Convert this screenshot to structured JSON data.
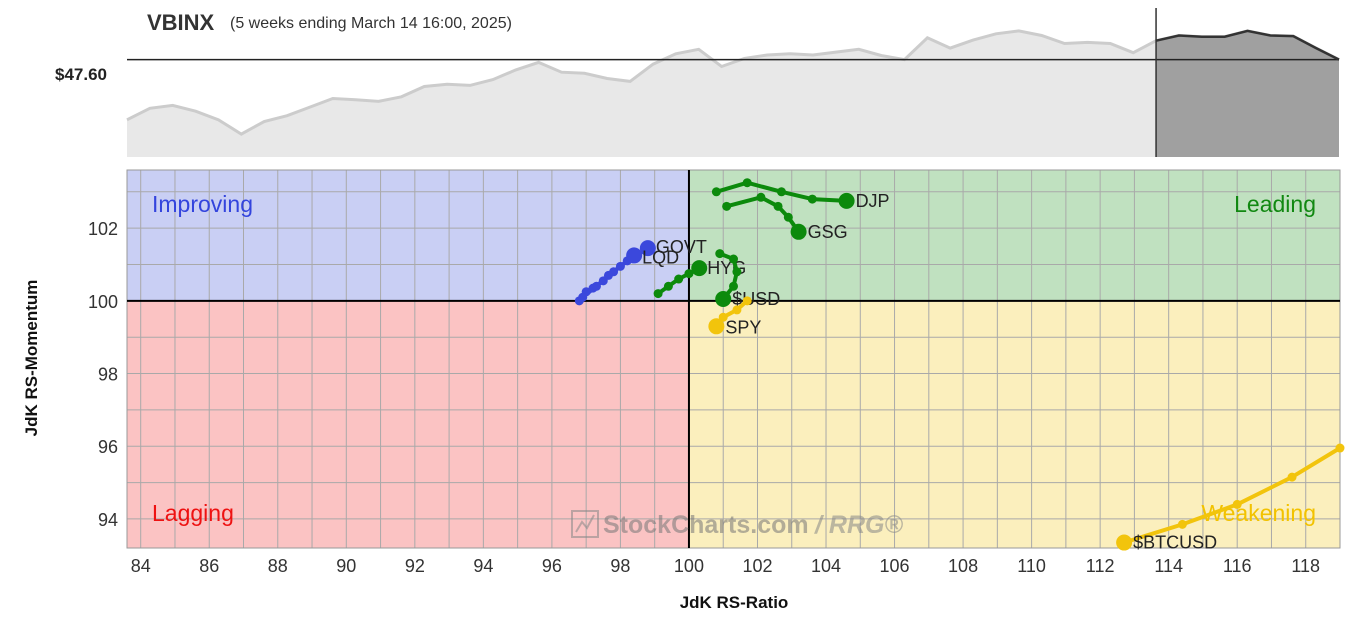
{
  "header": {
    "symbol": "VBINX",
    "subtitle": "(5 weeks ending March 14 16:00, 2025)",
    "price_label": "$47.60"
  },
  "watermark": "StockCharts.com",
  "watermark_rrg": "/ RRG®",
  "colors": {
    "improving": "#c9cff4",
    "leading": "#c0e1c0",
    "weakening": "#fbefbd",
    "lagging": "#fbc3c3",
    "improving_text": "#3344dd",
    "leading_text": "#118811",
    "weakening_text": "#f2c200",
    "lagging_text": "#ee1111",
    "blue_tail": "#3b48dc",
    "green_tail": "#0c8a0c",
    "yellow_tail": "#f2c40c",
    "price_fill": "#e8e8e8",
    "price_line": "#cccccc",
    "price_recent_fill": "#a0a0a0"
  },
  "price_chart": {
    "type": "area",
    "reference_value": 47.6,
    "recent_window_start_index": 45,
    "values": [
      46.55,
      46.75,
      46.8,
      46.7,
      46.55,
      46.3,
      46.52,
      46.62,
      46.77,
      46.92,
      46.9,
      46.87,
      46.95,
      47.13,
      47.17,
      47.15,
      47.25,
      47.42,
      47.55,
      47.38,
      47.36,
      47.27,
      47.22,
      47.52,
      47.7,
      47.78,
      47.48,
      47.62,
      47.68,
      47.7,
      47.68,
      47.73,
      47.78,
      47.67,
      47.6,
      47.98,
      47.8,
      47.94,
      48.05,
      48.1,
      48.02,
      47.88,
      47.9,
      47.88,
      47.72,
      47.93,
      48.02,
      48.0,
      48.0,
      48.1,
      48.02,
      48.01,
      47.8,
      47.6
    ]
  },
  "chart_data": {
    "type": "scatter",
    "title": "VBINX",
    "subtitle": "(5 weeks ending March 14 16:00, 2025)",
    "xlabel": "JdK RS-Ratio",
    "ylabel": "JdK RS-Momentum",
    "xlim": [
      83.6,
      119
    ],
    "ylim": [
      93.2,
      103.6
    ],
    "xticks": [
      84,
      86,
      88,
      90,
      92,
      94,
      96,
      98,
      100,
      102,
      104,
      106,
      108,
      110,
      112,
      114,
      116,
      118
    ],
    "yticks": [
      94,
      96,
      98,
      100,
      102
    ],
    "grid": true,
    "quadrants": [
      "Improving",
      "Leading",
      "Weakening",
      "Lagging"
    ],
    "series": [
      {
        "name": "GOVT",
        "color": "blue",
        "points": [
          [
            96.8,
            100.0
          ],
          [
            97.0,
            100.25
          ],
          [
            97.2,
            100.35
          ],
          [
            97.5,
            100.55
          ],
          [
            97.8,
            100.8
          ],
          [
            98.2,
            101.1
          ],
          [
            98.8,
            101.45
          ]
        ]
      },
      {
        "name": "LQD",
        "color": "blue",
        "points": [
          [
            96.9,
            100.1
          ],
          [
            97.3,
            100.4
          ],
          [
            97.65,
            100.7
          ],
          [
            98.0,
            100.95
          ],
          [
            98.4,
            101.25
          ]
        ]
      },
      {
        "name": "HYG",
        "color": "green",
        "points": [
          [
            99.1,
            100.2
          ],
          [
            99.4,
            100.4
          ],
          [
            99.7,
            100.6
          ],
          [
            100.0,
            100.75
          ],
          [
            100.3,
            100.9
          ]
        ]
      },
      {
        "name": "$USD",
        "color": "green",
        "points": [
          [
            100.9,
            101.3
          ],
          [
            101.3,
            101.15
          ],
          [
            101.4,
            100.8
          ],
          [
            101.3,
            100.4
          ],
          [
            101.0,
            100.05
          ]
        ]
      },
      {
        "name": "DJP",
        "color": "green",
        "points": [
          [
            100.8,
            103.0
          ],
          [
            101.7,
            103.25
          ],
          [
            102.7,
            103.0
          ],
          [
            103.6,
            102.8
          ],
          [
            104.6,
            102.75
          ]
        ]
      },
      {
        "name": "GSG",
        "color": "green",
        "points": [
          [
            101.1,
            102.6
          ],
          [
            102.1,
            102.85
          ],
          [
            102.6,
            102.6
          ],
          [
            102.9,
            102.3
          ],
          [
            103.2,
            101.9
          ]
        ]
      },
      {
        "name": "SPY",
        "color": "yellow",
        "points": [
          [
            101.7,
            100.0
          ],
          [
            101.4,
            99.75
          ],
          [
            101.0,
            99.55
          ],
          [
            100.8,
            99.3
          ]
        ]
      },
      {
        "name": "$BTCUSD",
        "color": "yellow",
        "points": [
          [
            119.0,
            95.95
          ],
          [
            117.6,
            95.15
          ],
          [
            116.0,
            94.4
          ],
          [
            114.4,
            93.85
          ],
          [
            112.7,
            93.35
          ]
        ]
      }
    ]
  }
}
